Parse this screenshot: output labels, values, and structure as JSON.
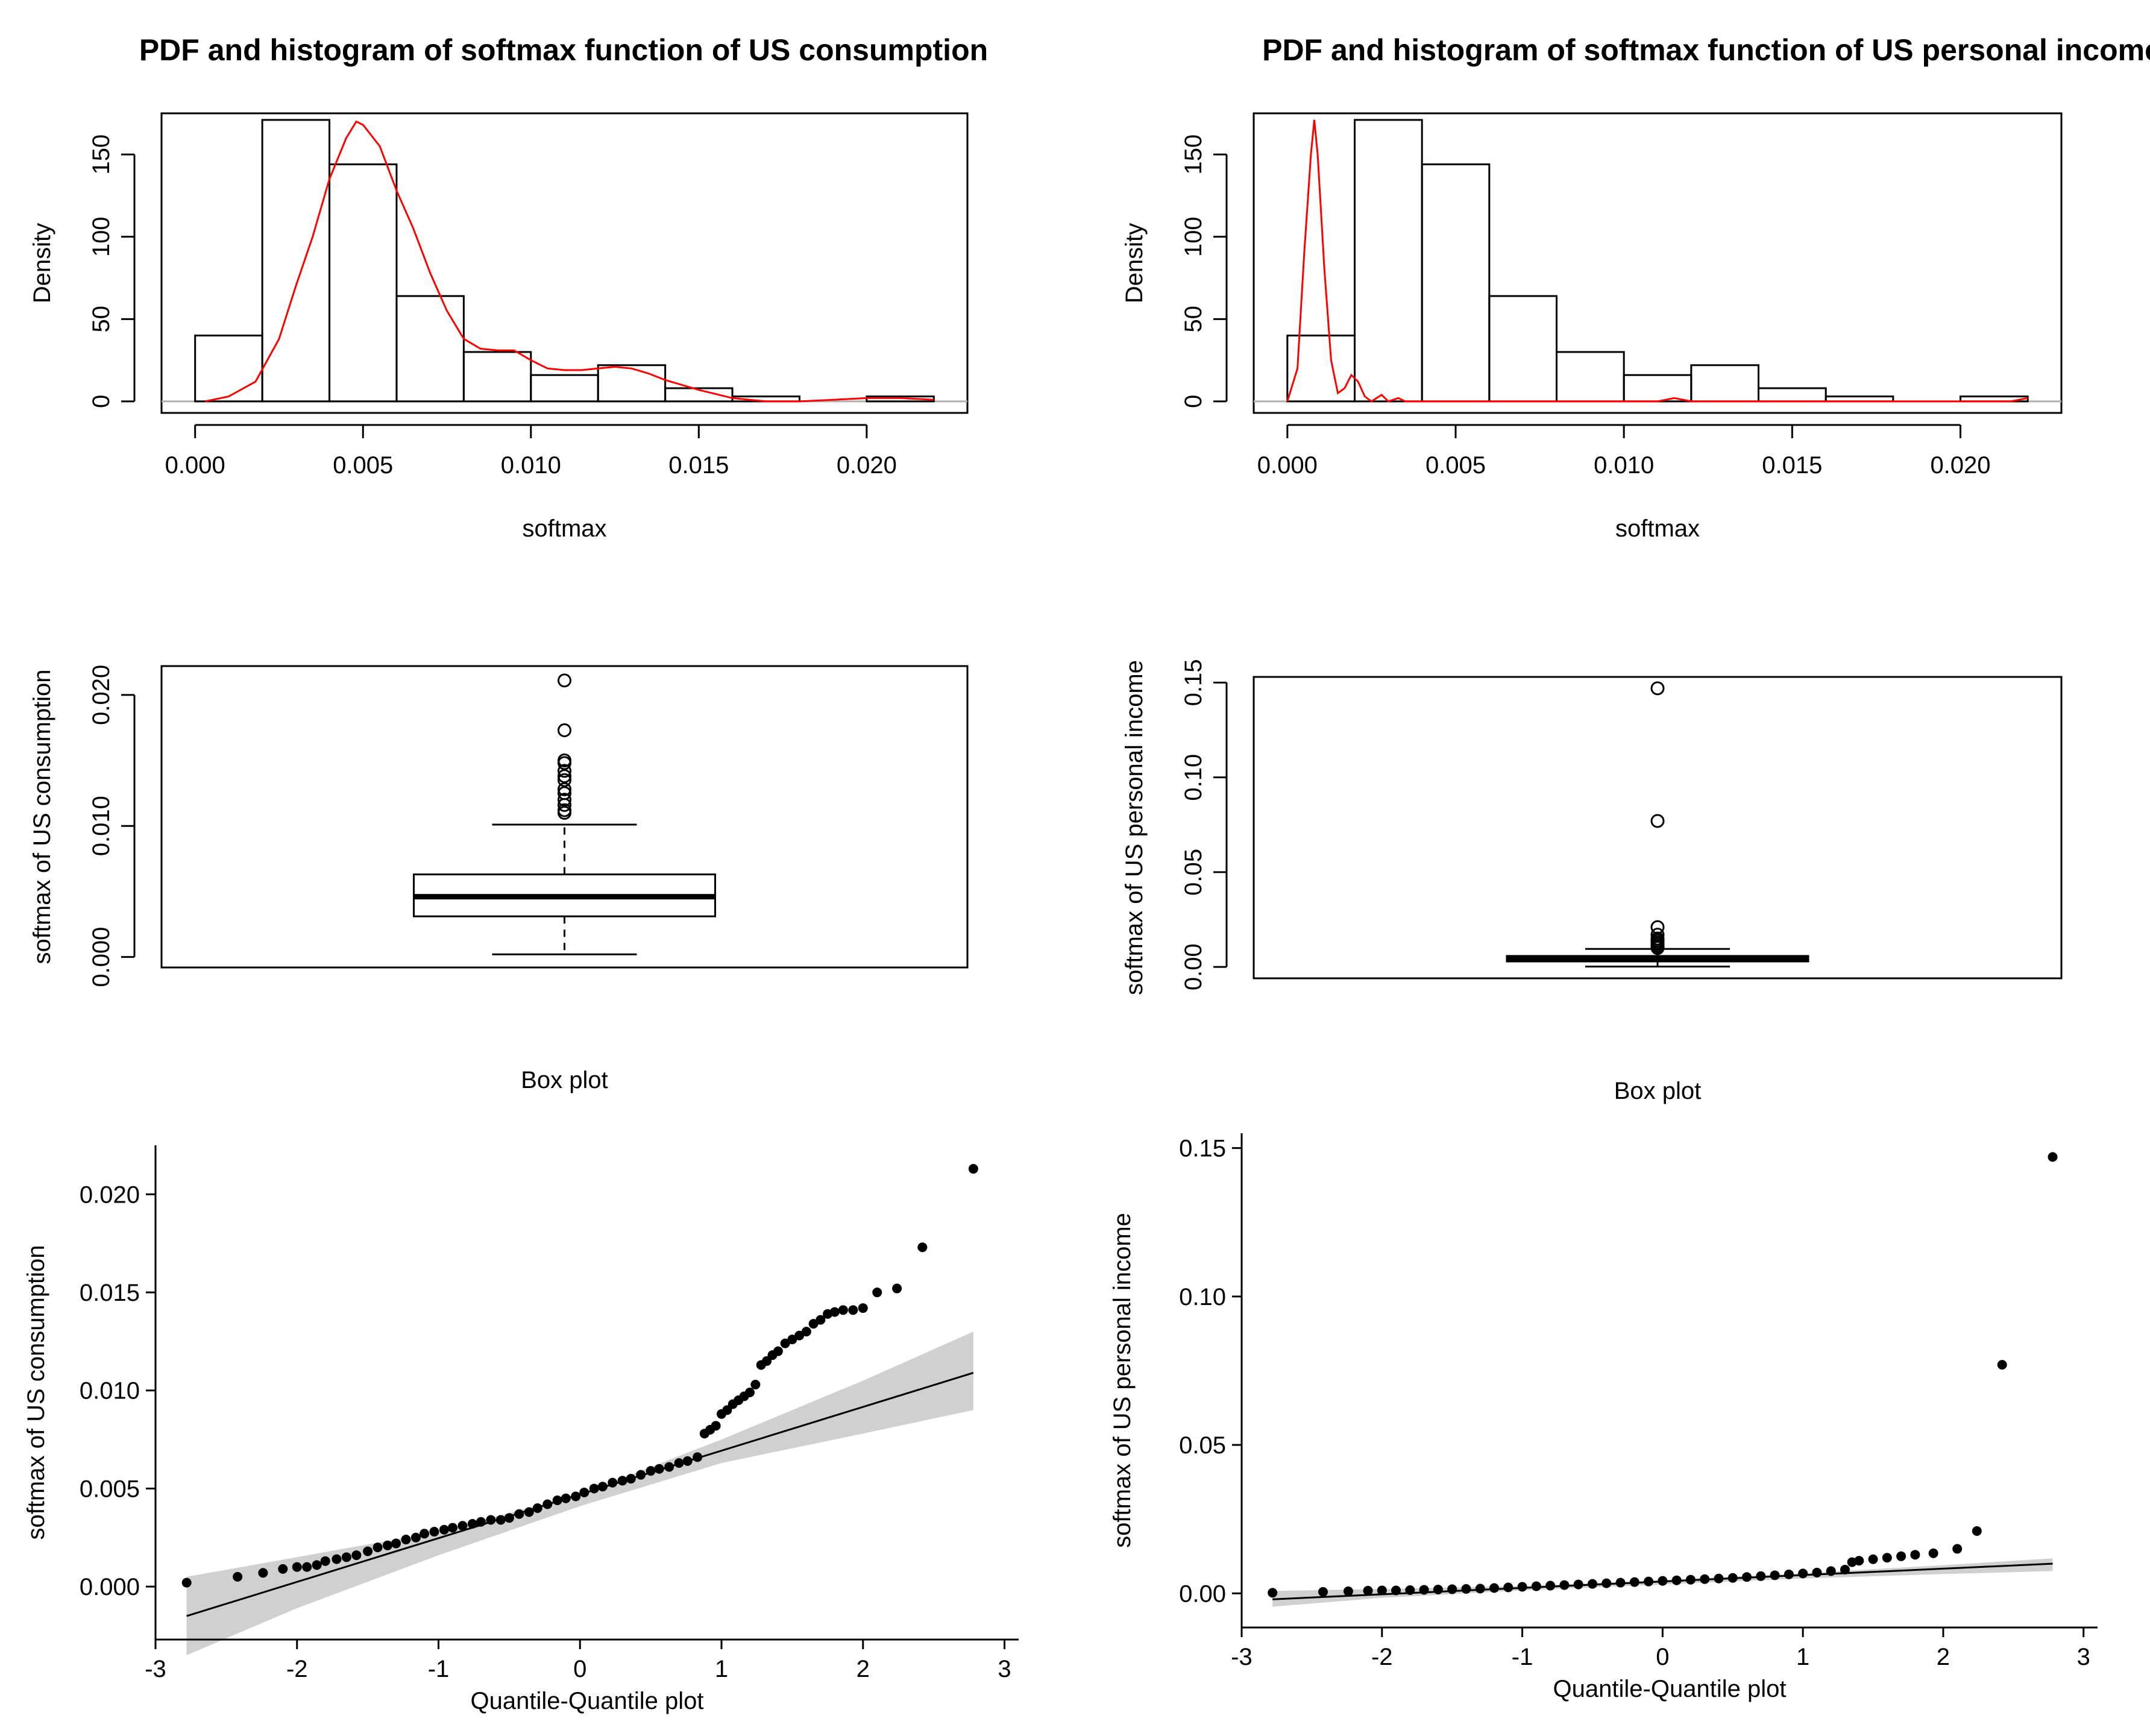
{
  "chart_data": [
    {
      "id": "hist_consumption",
      "type": "bar",
      "title": "PDF and histogram of softmax function of US consumption",
      "xlabel": "softmax",
      "ylabel": "Density",
      "xlim": [
        -0.001,
        0.023
      ],
      "ylim": [
        -7,
        175
      ],
      "xticks": [
        0.0,
        0.005,
        0.01,
        0.015,
        0.02
      ],
      "xtick_labels": [
        "0.000",
        "0.005",
        "0.010",
        "0.015",
        "0.020"
      ],
      "yticks": [
        0,
        50,
        100,
        150
      ],
      "ytick_labels": [
        "0",
        "50",
        "100",
        "150"
      ],
      "bin_edges": [
        0.0,
        0.002,
        0.004,
        0.006,
        0.008,
        0.01,
        0.012,
        0.014,
        0.016,
        0.018,
        0.02,
        0.022
      ],
      "densities": [
        40,
        171,
        144,
        64,
        30,
        16,
        22,
        8,
        3,
        0,
        3
      ],
      "pdf_curve": {
        "color": "#ff0000",
        "x": [
          0.0003,
          0.001,
          0.0018,
          0.0025,
          0.003,
          0.0035,
          0.004,
          0.0045,
          0.0048,
          0.005,
          0.0055,
          0.006,
          0.0065,
          0.007,
          0.0075,
          0.008,
          0.0085,
          0.009,
          0.0095,
          0.01,
          0.0105,
          0.011,
          0.0115,
          0.012,
          0.0125,
          0.013,
          0.0135,
          0.014,
          0.015,
          0.016,
          0.017,
          0.018,
          0.019,
          0.02,
          0.021,
          0.022
        ],
        "y": [
          0,
          3,
          12,
          38,
          70,
          100,
          135,
          160,
          170,
          168,
          155,
          128,
          105,
          78,
          55,
          38,
          32,
          31,
          31,
          25,
          20,
          19,
          19,
          20,
          21,
          20,
          17,
          13,
          7,
          2,
          0,
          0,
          1,
          2,
          2,
          1
        ]
      }
    },
    {
      "id": "hist_income",
      "type": "bar",
      "title": "PDF and histogram of softmax function of US personal income",
      "xlabel": "softmax",
      "ylabel": "Density",
      "xlim": [
        -0.001,
        0.023
      ],
      "ylim": [
        -7,
        175
      ],
      "xticks": [
        0.0,
        0.005,
        0.01,
        0.015,
        0.02
      ],
      "xtick_labels": [
        "0.000",
        "0.005",
        "0.010",
        "0.015",
        "0.020"
      ],
      "yticks": [
        0,
        50,
        100,
        150
      ],
      "ytick_labels": [
        "0",
        "50",
        "100",
        "150"
      ],
      "bin_edges": [
        0.0,
        0.002,
        0.004,
        0.006,
        0.008,
        0.01,
        0.012,
        0.014,
        0.016,
        0.018,
        0.02,
        0.022
      ],
      "densities": [
        40,
        171,
        144,
        64,
        30,
        16,
        22,
        8,
        3,
        0,
        3
      ],
      "pdf_curve": {
        "color": "#ff0000",
        "x": [
          0.0,
          0.0003,
          0.0005,
          0.0007,
          0.0008,
          0.0009,
          0.0011,
          0.0013,
          0.0015,
          0.0017,
          0.0019,
          0.0021,
          0.0023,
          0.0025,
          0.0028,
          0.003,
          0.0033,
          0.0035,
          0.0038,
          0.004,
          0.011,
          0.0115,
          0.012,
          0.0215,
          0.022
        ],
        "y": [
          0,
          20,
          90,
          150,
          171,
          150,
          80,
          25,
          5,
          8,
          16,
          12,
          3,
          0,
          4,
          0,
          2,
          0,
          0,
          0,
          0,
          2,
          0,
          0,
          2
        ]
      }
    },
    {
      "id": "box_consumption",
      "type": "box",
      "ylabel": "softmax of US consumption",
      "xlabel": "Box plot",
      "ylim": [
        -0.0008,
        0.0222
      ],
      "yticks": [
        0.0,
        0.01,
        0.02
      ],
      "ytick_labels": [
        "0.000",
        "0.010",
        "0.020"
      ],
      "whisker_low": 0.0002,
      "q1": 0.0031,
      "median": 0.0046,
      "q3": 0.0063,
      "whisker_high": 0.0101,
      "outliers": [
        0.0211,
        0.0173,
        0.015,
        0.0148,
        0.0142,
        0.0138,
        0.0135,
        0.0128,
        0.0125,
        0.012,
        0.0116,
        0.0112,
        0.011
      ]
    },
    {
      "id": "box_income",
      "type": "box",
      "ylabel": "softmax of US personal income",
      "xlabel": "Box plot",
      "ylim": [
        -0.006,
        0.153
      ],
      "yticks": [
        0.0,
        0.05,
        0.1,
        0.15
      ],
      "ytick_labels": [
        "0.00",
        "0.05",
        "0.10",
        "0.15"
      ],
      "whisker_low": 0.0002,
      "q1": 0.0029,
      "median": 0.0042,
      "q3": 0.0058,
      "whisker_high": 0.0095,
      "outliers": [
        0.147,
        0.077,
        0.021,
        0.017,
        0.015,
        0.014,
        0.013,
        0.012,
        0.011,
        0.0105,
        0.01
      ]
    },
    {
      "id": "qq_consumption",
      "type": "scatter",
      "ylabel": "softmax of US consumption",
      "xlabel": "Quantile-Quantile plot",
      "xlim": [
        -3.0,
        3.1
      ],
      "ylim": [
        -0.0027,
        0.0225
      ],
      "xticks": [
        -3,
        -2,
        -1,
        0,
        1,
        2,
        3
      ],
      "xtick_labels": [
        "-3",
        "-2",
        "-1",
        "0",
        "1",
        "2",
        "3"
      ],
      "yticks": [
        0.0,
        0.005,
        0.01,
        0.015,
        0.02
      ],
      "ytick_labels": [
        "0.000",
        "0.005",
        "0.010",
        "0.015",
        "0.020"
      ],
      "ref_line": {
        "x": [
          -2.78,
          2.78
        ],
        "y": [
          -0.0015,
          0.0109
        ]
      },
      "band": {
        "x": [
          -2.78,
          -2.0,
          -1.0,
          0.0,
          1.0,
          2.0,
          2.78
        ],
        "lower": [
          -0.0035,
          -0.0011,
          0.0016,
          0.0041,
          0.0063,
          0.0078,
          0.009
        ],
        "upper": [
          0.0005,
          0.0015,
          0.0028,
          0.0047,
          0.0075,
          0.0105,
          0.013
        ]
      },
      "points": {
        "x": [
          -2.78,
          -2.42,
          -2.24,
          -2.1,
          -2.0,
          -1.93,
          -1.86,
          -1.8,
          -1.72,
          -1.65,
          -1.58,
          -1.5,
          -1.43,
          -1.36,
          -1.3,
          -1.23,
          -1.16,
          -1.1,
          -1.03,
          -0.96,
          -0.9,
          -0.83,
          -0.76,
          -0.7,
          -0.63,
          -0.56,
          -0.5,
          -0.43,
          -0.36,
          -0.3,
          -0.23,
          -0.16,
          -0.1,
          -0.03,
          0.03,
          0.1,
          0.16,
          0.23,
          0.3,
          0.36,
          0.43,
          0.5,
          0.56,
          0.63,
          0.7,
          0.76,
          0.83,
          0.88,
          0.92,
          0.96,
          1.0,
          1.04,
          1.08,
          1.12,
          1.16,
          1.2,
          1.24,
          1.28,
          1.32,
          1.36,
          1.4,
          1.45,
          1.5,
          1.55,
          1.6,
          1.65,
          1.7,
          1.75,
          1.8,
          1.86,
          1.93,
          2.0,
          2.1,
          2.24,
          2.42,
          2.78
        ],
        "y": [
          0.0002,
          0.0005,
          0.0007,
          0.0009,
          0.001,
          0.001,
          0.0011,
          0.0013,
          0.0014,
          0.0015,
          0.0016,
          0.0018,
          0.002,
          0.0021,
          0.0022,
          0.0024,
          0.0025,
          0.0027,
          0.0028,
          0.0029,
          0.003,
          0.0031,
          0.0032,
          0.0033,
          0.0034,
          0.0034,
          0.0035,
          0.0037,
          0.0038,
          0.004,
          0.0042,
          0.0044,
          0.0045,
          0.0046,
          0.0048,
          0.005,
          0.0051,
          0.0053,
          0.0054,
          0.0055,
          0.0057,
          0.0059,
          0.006,
          0.0061,
          0.0063,
          0.0064,
          0.0066,
          0.0078,
          0.008,
          0.0082,
          0.0088,
          0.009,
          0.0093,
          0.0095,
          0.0097,
          0.0099,
          0.0103,
          0.0113,
          0.0115,
          0.0118,
          0.012,
          0.0124,
          0.0126,
          0.0128,
          0.013,
          0.0134,
          0.0136,
          0.0139,
          0.014,
          0.0141,
          0.0141,
          0.0142,
          0.015,
          0.0152,
          0.0173,
          0.0213
        ]
      }
    },
    {
      "id": "qq_income",
      "type": "scatter",
      "ylabel": "softmax of US personal income",
      "xlabel": "Quantile-Quantile plot",
      "xlim": [
        -3.0,
        3.1
      ],
      "ylim": [
        -0.0115,
        0.155
      ],
      "xticks": [
        -3,
        -2,
        -1,
        0,
        1,
        2,
        3
      ],
      "xtick_labels": [
        "-3",
        "-2",
        "-1",
        "0",
        "1",
        "2",
        "3"
      ],
      "yticks": [
        0.0,
        0.05,
        0.1,
        0.15
      ],
      "ytick_labels": [
        "0.00",
        "0.05",
        "0.10",
        "0.15"
      ],
      "ref_line": {
        "x": [
          -2.78,
          2.78
        ],
        "y": [
          -0.002,
          0.01
        ]
      },
      "band": {
        "x": [
          -2.78,
          -2.0,
          -1.0,
          0.0,
          1.0,
          2.0,
          2.78
        ],
        "lower": [
          -0.0045,
          -0.0015,
          0.001,
          0.003,
          0.005,
          0.0065,
          0.0075
        ],
        "upper": [
          0.0008,
          0.0015,
          0.0025,
          0.0045,
          0.0068,
          0.0095,
          0.0118
        ]
      },
      "points": {
        "x": [
          -2.78,
          -2.42,
          -2.24,
          -2.1,
          -2.0,
          -1.9,
          -1.8,
          -1.7,
          -1.6,
          -1.5,
          -1.4,
          -1.3,
          -1.2,
          -1.1,
          -1.0,
          -0.9,
          -0.8,
          -0.7,
          -0.6,
          -0.5,
          -0.4,
          -0.3,
          -0.2,
          -0.1,
          0.0,
          0.1,
          0.2,
          0.3,
          0.4,
          0.5,
          0.6,
          0.7,
          0.8,
          0.9,
          1.0,
          1.1,
          1.2,
          1.3,
          1.35,
          1.4,
          1.5,
          1.6,
          1.7,
          1.8,
          1.93,
          2.1,
          2.24,
          2.42,
          2.78
        ],
        "y": [
          0.0002,
          0.0005,
          0.0007,
          0.0009,
          0.001,
          0.001,
          0.0011,
          0.0012,
          0.0013,
          0.0014,
          0.0015,
          0.0016,
          0.0018,
          0.002,
          0.0022,
          0.0024,
          0.0026,
          0.0028,
          0.003,
          0.0032,
          0.0034,
          0.0036,
          0.0038,
          0.004,
          0.0042,
          0.0044,
          0.0046,
          0.0048,
          0.005,
          0.0052,
          0.0055,
          0.0058,
          0.0061,
          0.0064,
          0.0067,
          0.007,
          0.0075,
          0.008,
          0.0105,
          0.011,
          0.0115,
          0.012,
          0.0125,
          0.013,
          0.0135,
          0.015,
          0.021,
          0.077,
          0.147
        ]
      }
    }
  ]
}
